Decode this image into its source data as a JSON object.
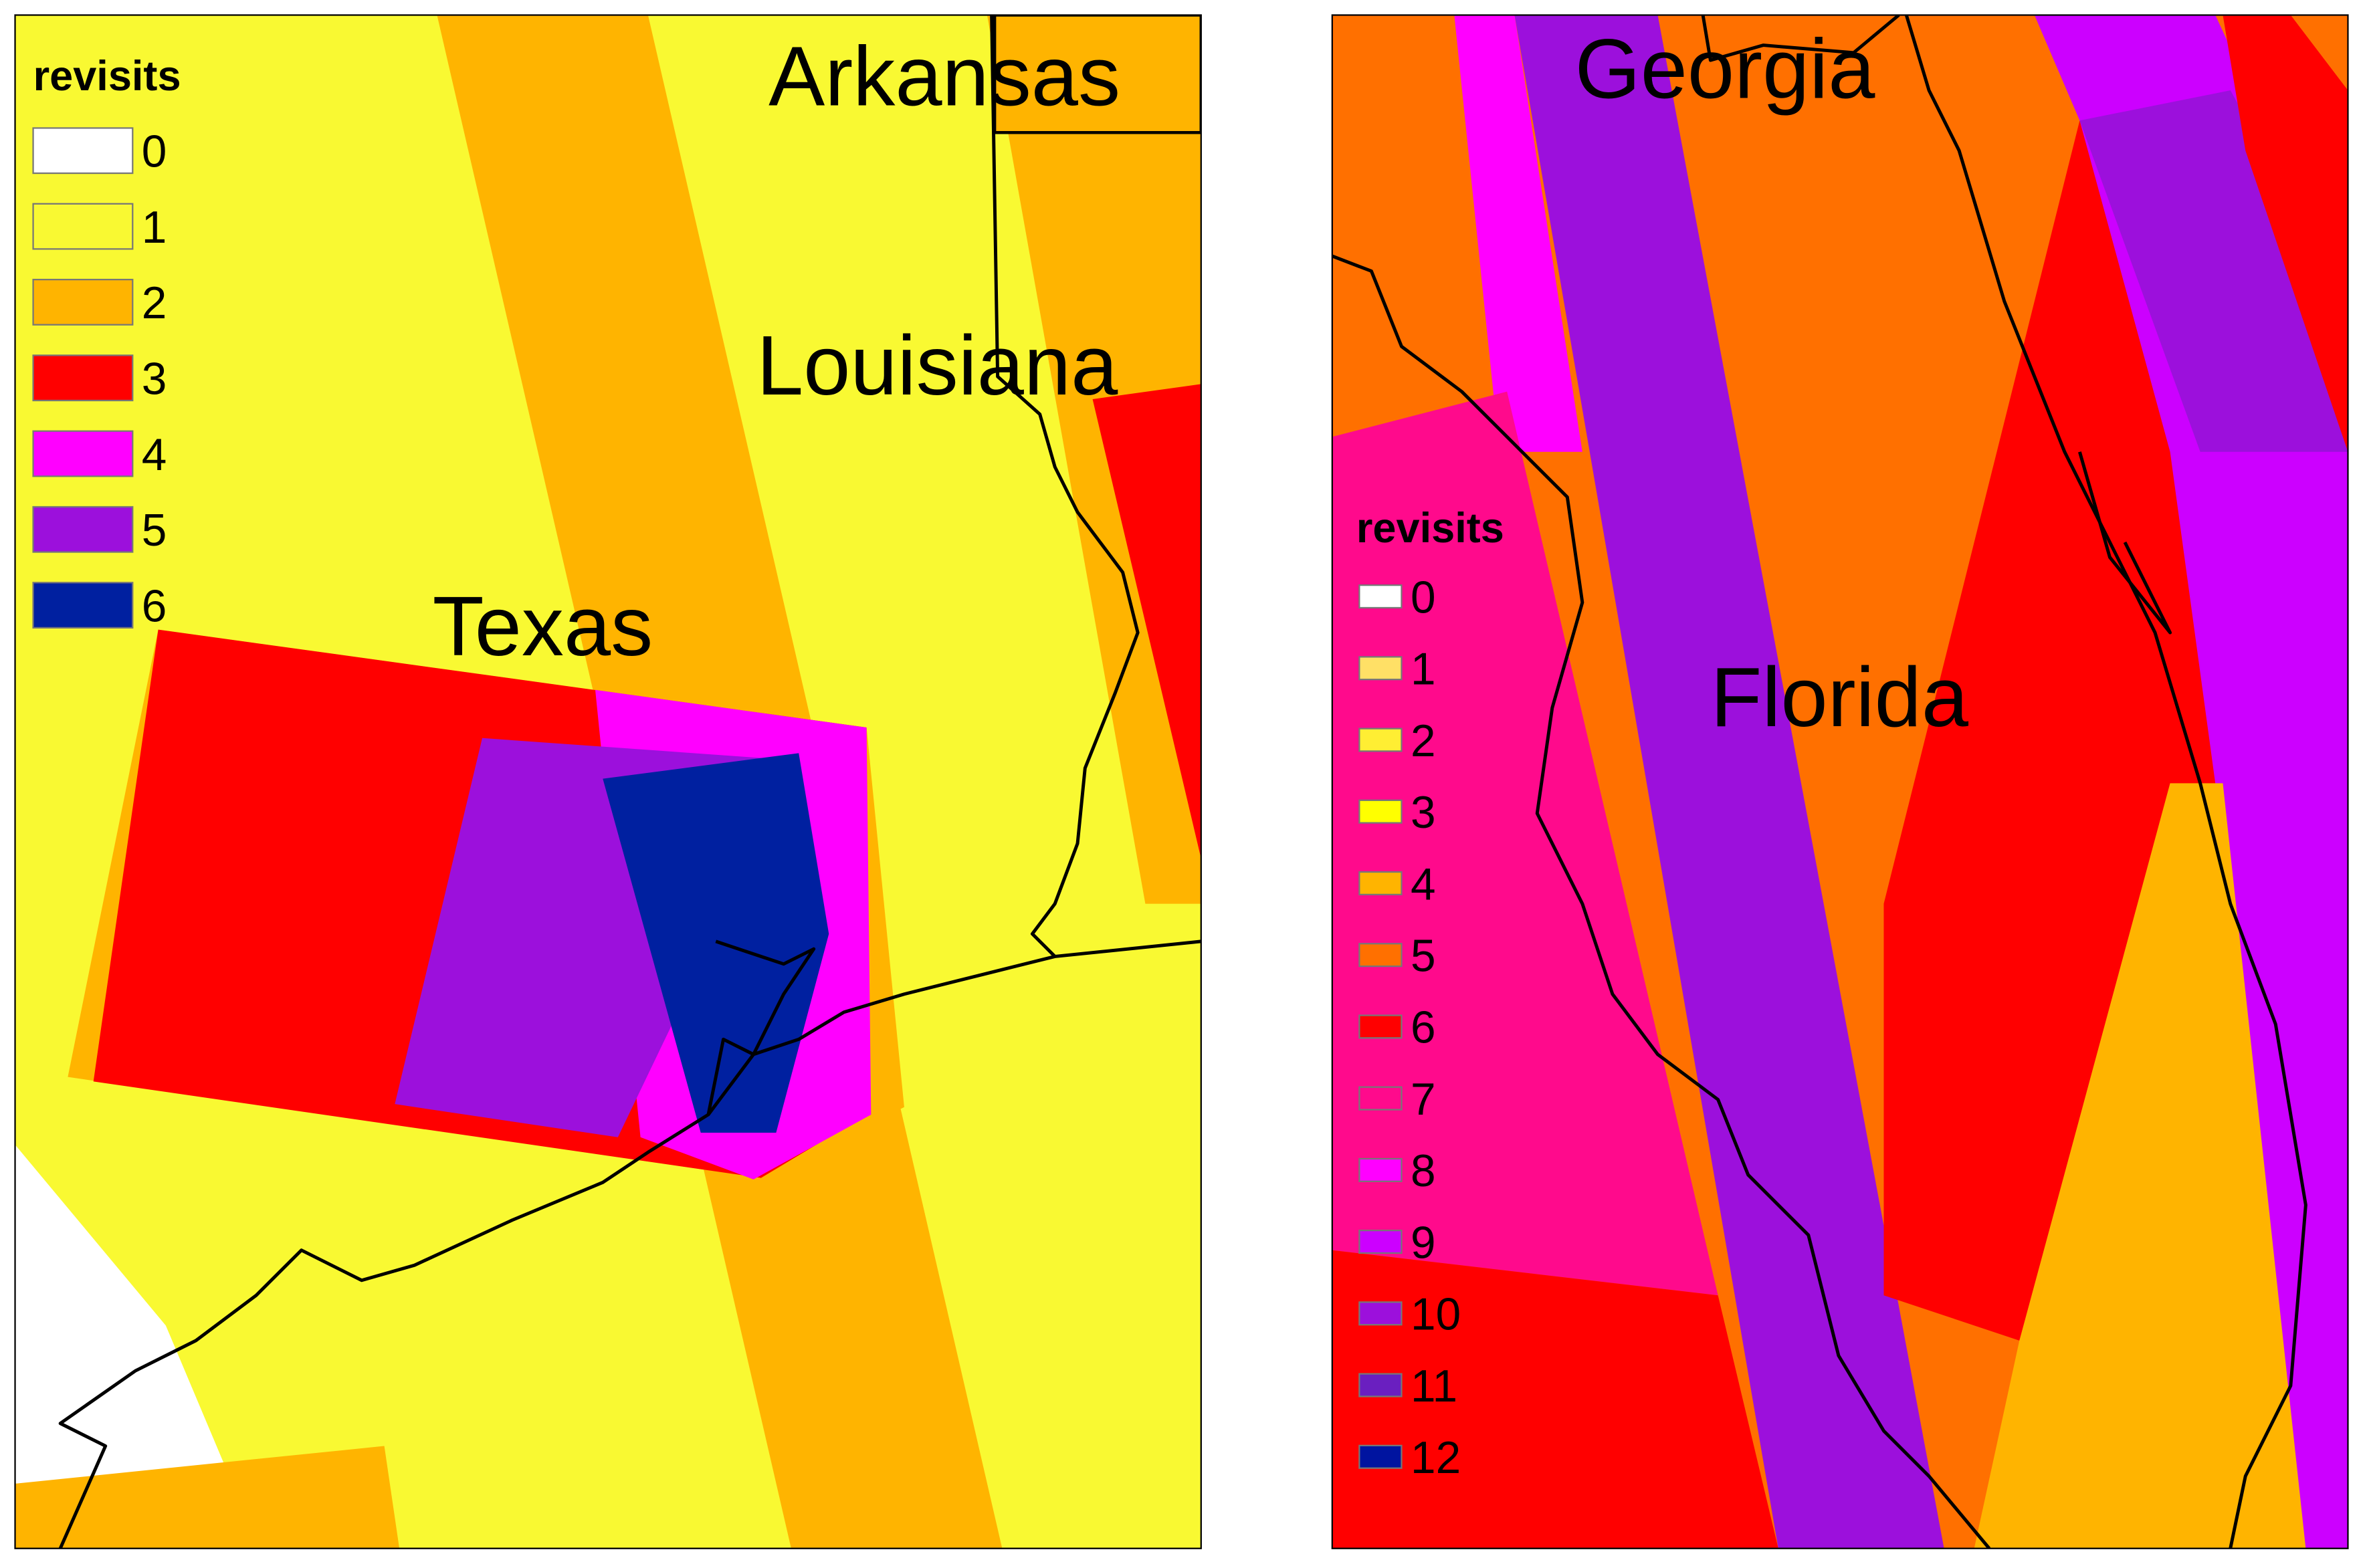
{
  "left_map": {
    "legend": {
      "title": "revisits",
      "items": [
        {
          "label": "0",
          "color": "#ffffff"
        },
        {
          "label": "1",
          "color": "#f9f932"
        },
        {
          "label": "2",
          "color": "#ffb400"
        },
        {
          "label": "3",
          "color": "#ff0000"
        },
        {
          "label": "4",
          "color": "#ff00ff"
        },
        {
          "label": "5",
          "color": "#9c10dc"
        },
        {
          "label": "6",
          "color": "#0020a0"
        }
      ]
    },
    "labels": [
      "Arkansas",
      "Louisiana",
      "Texas"
    ]
  },
  "right_map": {
    "legend": {
      "title": "revisits",
      "items": [
        {
          "label": "0",
          "color": "#ffffff"
        },
        {
          "label": "1",
          "color": "#ffe066"
        },
        {
          "label": "2",
          "color": "#ffee33"
        },
        {
          "label": "3",
          "color": "#ffff00"
        },
        {
          "label": "4",
          "color": "#ffb400"
        },
        {
          "label": "5",
          "color": "#ff7000"
        },
        {
          "label": "6",
          "color": "#ff0000"
        },
        {
          "label": "7",
          "color": "#ff0a8c"
        },
        {
          "label": "8",
          "color": "#ff00ff"
        },
        {
          "label": "9",
          "color": "#cc00ff"
        },
        {
          "label": "10",
          "color": "#9c10dc"
        },
        {
          "label": "11",
          "color": "#6a1fc0"
        },
        {
          "label": "12",
          "color": "#0014a0"
        }
      ]
    },
    "labels": [
      "Georgia",
      "Florida"
    ]
  }
}
